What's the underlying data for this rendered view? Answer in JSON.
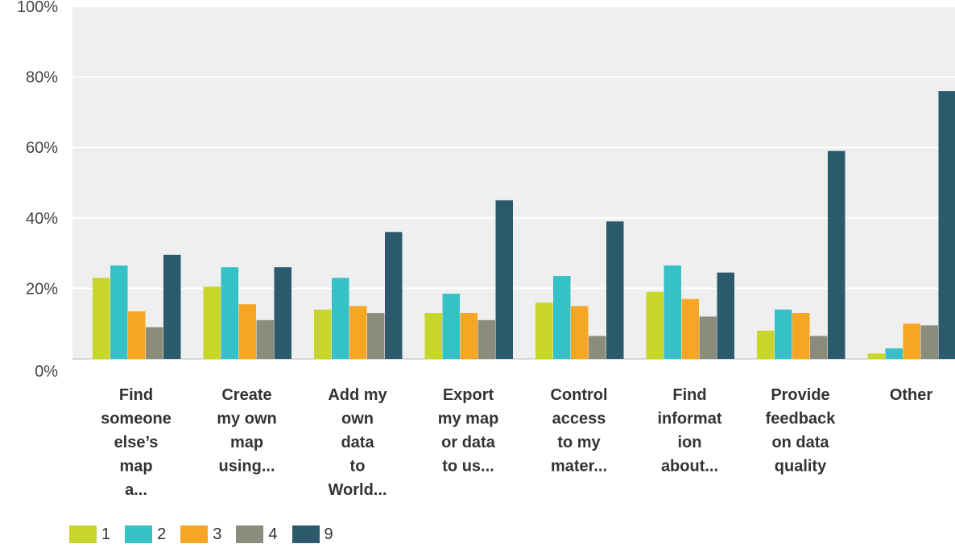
{
  "chart_data": {
    "type": "bar",
    "categories": [
      [
        "Find",
        "someone",
        "else’s",
        "map",
        "a..."
      ],
      [
        "Create",
        "my own",
        "map",
        "using..."
      ],
      [
        "Add my",
        "own",
        "data",
        "to",
        "World..."
      ],
      [
        "Export",
        "my map",
        "or data",
        "to us..."
      ],
      [
        "Control",
        "access",
        "to my",
        "mater..."
      ],
      [
        "Find",
        "informat",
        "ion",
        "about..."
      ],
      [
        "Provide",
        "feedback",
        "on data",
        "quality"
      ],
      [
        "Other"
      ]
    ],
    "series": [
      {
        "name": "1",
        "color": "#c8d62b",
        "values": [
          23,
          20.5,
          14,
          13,
          16,
          19,
          8,
          1.5
        ]
      },
      {
        "name": "2",
        "color": "#35c1c6",
        "values": [
          26.5,
          26,
          23,
          18.5,
          23.5,
          26.5,
          14,
          3
        ]
      },
      {
        "name": "3",
        "color": "#f6a623",
        "values": [
          13.5,
          15.5,
          15,
          13,
          15,
          17,
          13,
          10
        ]
      },
      {
        "name": "4",
        "color": "#8c8c7d",
        "values": [
          9,
          11,
          13,
          11,
          6.5,
          12,
          6.5,
          9.5
        ]
      },
      {
        "name": "9",
        "color": "#2a5a6b",
        "values": [
          29.5,
          26,
          36,
          45,
          39,
          24.5,
          59,
          76
        ]
      }
    ],
    "yticks": [
      "0%",
      "20%",
      "40%",
      "60%",
      "80%",
      "100%"
    ],
    "ylim": [
      0,
      100
    ],
    "grid": true,
    "plot_background": "#efefef",
    "legend_position": "bottom-left"
  }
}
